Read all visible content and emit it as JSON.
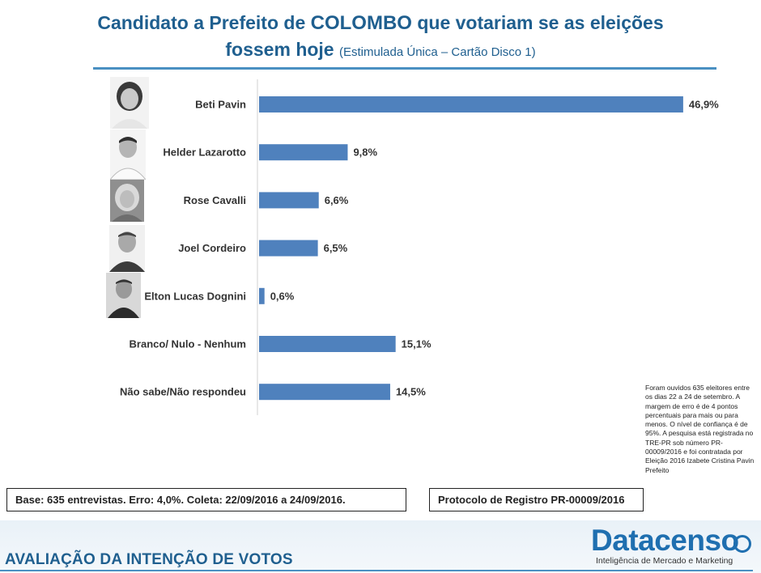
{
  "title": {
    "part1": "Candidato a Prefeito de ",
    "emphasis": "COLOMBO",
    "part2": " que votariam se as eleições",
    "line2": "fossem hoje",
    "subtitle": "(Estimulada Única – Cartão Disco 1)"
  },
  "chart_data": {
    "type": "bar",
    "orientation": "horizontal",
    "categories": [
      "Beti Pavin",
      "Helder Lazarotto",
      "Rose Cavalli",
      "Joel Cordeiro",
      "Elton Lucas Dognini",
      "Branco/ Nulo - Nenhum",
      "Não sabe/Não respondeu"
    ],
    "values": [
      46.9,
      9.8,
      6.6,
      6.5,
      0.6,
      15.1,
      14.5
    ],
    "value_labels": [
      "46,9%",
      "9,8%",
      "6,6%",
      "6,5%",
      "0,6%",
      "15,1%",
      "14,5%"
    ],
    "bar_color": "#4f81bd",
    "xlim": [
      0,
      47
    ]
  },
  "footnote": "Foram ouvidos 635 eleitores entre os dias 22 a 24 de setembro. A margem de erro é de 4 pontos percentuais para mais ou para menos. O nível de confiança é de 95%. A pesquisa está registrada no TRE-PR sob número PR-00009/2016 e foi contratada por Eleição 2016 Izabete Cristina Pavin Prefeito",
  "base_info": "Base: 635 entrevistas. Erro: 4,0%. Coleta: 22/09/2016 a 24/09/2016.",
  "protocol": "Protocolo de Registro PR-00009/2016",
  "footer_title": "AVALIAÇÃO DA INTENÇÃO DE VOTOS",
  "logo": {
    "name": "Datacenso",
    "tagline": "Inteligência de Mercado e Marketing"
  }
}
